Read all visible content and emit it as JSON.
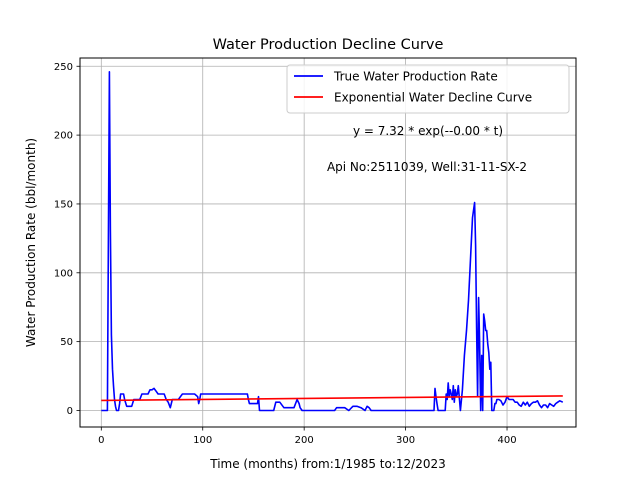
{
  "chart_data": {
    "type": "line",
    "title": "Water Production Decline Curve",
    "xlabel": "Time (months) from:1/1985 to:12/2023",
    "ylabel": "Water Production Rate (bbl/month)",
    "xlim": [
      -21,
      468
    ],
    "ylim": [
      -12,
      256
    ],
    "xticks": [
      0,
      100,
      200,
      300,
      400
    ],
    "yticks": [
      0,
      50,
      100,
      150,
      200,
      250
    ],
    "grid": true,
    "legend_position": "top-right",
    "annotations": [
      "y = 7.32 * exp(--0.00 * t)",
      "Api No:2511039, Well:31-11-SX-2"
    ],
    "series": [
      {
        "name": "True Water Production Rate",
        "color": "#0000ff",
        "x": [
          0,
          6,
          7,
          8,
          9,
          10,
          11,
          12,
          13,
          14,
          15,
          16,
          17,
          18,
          19,
          20,
          22,
          23,
          25,
          26,
          28,
          30,
          32,
          34,
          36,
          38,
          40,
          42,
          44,
          46,
          48,
          50,
          52,
          54,
          56,
          58,
          60,
          62,
          64,
          66,
          68,
          70,
          72,
          74,
          76,
          78,
          80,
          84,
          88,
          92,
          95,
          96,
          97,
          98,
          100,
          104,
          110,
          120,
          130,
          140,
          144,
          145,
          146,
          150,
          153,
          154,
          155,
          156,
          158,
          160,
          170,
          172,
          174,
          176,
          180,
          182,
          185,
          190,
          193,
          195,
          196,
          198,
          200,
          205,
          210,
          230,
          232,
          234,
          236,
          238,
          240,
          244,
          248,
          252,
          256,
          260,
          262,
          264,
          266,
          270,
          300,
          328,
          329,
          330,
          331,
          332,
          333,
          334,
          336,
          338,
          339,
          340,
          341,
          342,
          343,
          344,
          345,
          346,
          347,
          348,
          349,
          350,
          351,
          352,
          354,
          356,
          358,
          360,
          362,
          364,
          366,
          368,
          369,
          370,
          371,
          372,
          373,
          374,
          375,
          376,
          377,
          378,
          379,
          380,
          381,
          382,
          383,
          384,
          385,
          386,
          387,
          388,
          389,
          390,
          392,
          394,
          396,
          398,
          400,
          402,
          404,
          406,
          408,
          410,
          412,
          414,
          416,
          418,
          420,
          422,
          424,
          426,
          428,
          430,
          432,
          434,
          436,
          438,
          440,
          442,
          444,
          446,
          448,
          450,
          452,
          455
        ],
        "y": [
          0,
          0,
          125,
          246,
          130,
          55,
          30,
          18,
          8,
          3,
          0,
          0,
          0,
          5,
          12,
          12,
          12,
          8,
          3,
          3,
          3,
          3,
          8,
          8,
          8,
          8,
          12,
          12,
          12,
          12,
          15,
          15,
          16,
          14,
          12,
          12,
          12,
          12,
          8,
          6,
          2,
          8,
          8,
          8,
          8,
          10,
          12,
          12,
          12,
          12,
          10,
          5,
          8,
          12,
          12,
          12,
          12,
          12,
          12,
          12,
          12,
          8,
          5,
          5,
          5,
          5,
          10,
          0,
          0,
          0,
          0,
          6,
          6,
          6,
          2,
          2,
          2,
          2,
          8,
          5,
          2,
          0,
          0,
          0,
          0,
          0,
          2,
          2,
          2,
          2,
          2,
          0,
          3,
          3,
          2,
          0,
          3,
          2,
          0,
          0,
          0,
          0,
          16,
          10,
          5,
          0,
          0,
          0,
          0,
          0,
          0,
          12,
          8,
          20,
          10,
          15,
          12,
          8,
          18,
          6,
          15,
          10,
          12,
          18,
          0,
          15,
          40,
          58,
          80,
          110,
          140,
          151,
          120,
          60,
          10,
          82,
          50,
          0,
          40,
          0,
          70,
          65,
          58,
          58,
          48,
          42,
          30,
          35,
          0,
          0,
          0,
          5,
          5,
          8,
          8,
          7,
          4,
          6,
          10,
          8,
          8,
          8,
          6,
          6,
          4,
          3,
          6,
          4,
          6,
          3,
          5,
          6,
          6,
          7,
          4,
          2,
          4,
          4,
          2,
          5,
          4,
          3,
          5,
          6,
          7,
          6
        ]
      },
      {
        "name": "Exponential Water Decline Curve",
        "color": "#ff0000",
        "x": [
          0,
          455
        ],
        "y": [
          7.32,
          10.6
        ]
      }
    ]
  }
}
